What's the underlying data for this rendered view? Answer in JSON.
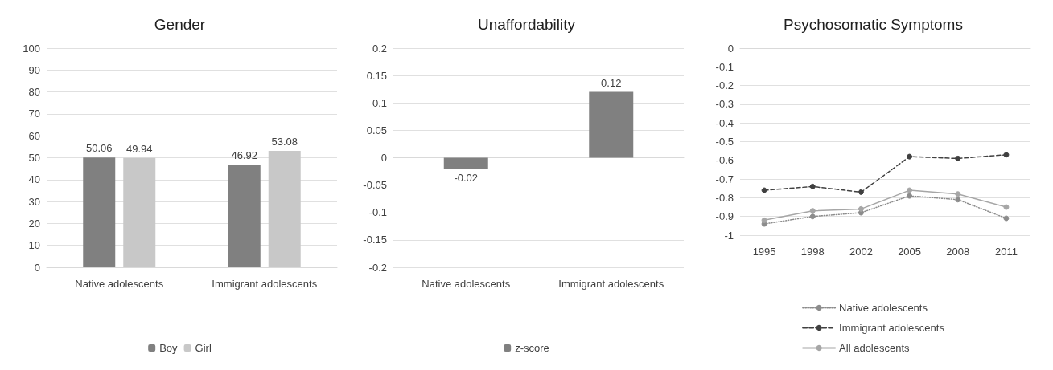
{
  "chart_data": [
    {
      "type": "bar",
      "title": "Gender",
      "categories": [
        "Native adolescents",
        "Immigrant adolescents"
      ],
      "series": [
        {
          "name": "Boy",
          "color": "#808080",
          "values": [
            50.06,
            46.92
          ]
        },
        {
          "name": "Girl",
          "color": "#c8c8c8",
          "values": [
            49.94,
            53.08
          ]
        }
      ],
      "ylim": [
        0,
        100
      ],
      "yticks": [
        0,
        10,
        20,
        30,
        40,
        50,
        60,
        70,
        80,
        90,
        100
      ],
      "grid": "y",
      "legend": "bottom",
      "data_labels": true
    },
    {
      "type": "bar",
      "title": "Unaffordability",
      "categories": [
        "Native adolescents",
        "Immigrant adolescents"
      ],
      "series": [
        {
          "name": "z-score",
          "color": "#808080",
          "values": [
            -0.02,
            0.12
          ]
        }
      ],
      "ylim": [
        -0.2,
        0.2
      ],
      "yticks": [
        -0.2,
        -0.15,
        -0.1,
        -0.05,
        0,
        0.05,
        0.1,
        0.15,
        0.2
      ],
      "grid": "y",
      "legend": "bottom",
      "data_labels": true
    },
    {
      "type": "line",
      "title": "Psychosomatic Symptoms",
      "categories": [
        "1995",
        "1998",
        "2002",
        "2005",
        "2008",
        "2011"
      ],
      "series": [
        {
          "name": "Native adolescents",
          "color": "#8c8c8c",
          "line_style": "dotted",
          "values": [
            -0.94,
            -0.9,
            -0.88,
            -0.79,
            -0.81,
            -0.91
          ]
        },
        {
          "name": "Immigrant adolescents",
          "color": "#404040",
          "line_style": "dashed",
          "values": [
            -0.76,
            -0.74,
            -0.77,
            -0.58,
            -0.59,
            -0.57
          ]
        },
        {
          "name": "All adolescents",
          "color": "#a6a6a6",
          "line_style": "solid",
          "values": [
            -0.92,
            -0.87,
            -0.86,
            -0.76,
            -0.78,
            -0.85
          ]
        }
      ],
      "ylim": [
        -1,
        0
      ],
      "yticks": [
        -1,
        -0.9,
        -0.8,
        -0.7,
        -0.6,
        -0.5,
        -0.4,
        -0.3,
        -0.2,
        -0.1,
        0
      ],
      "grid": "y",
      "legend": "bottom",
      "marker": "circle"
    }
  ]
}
